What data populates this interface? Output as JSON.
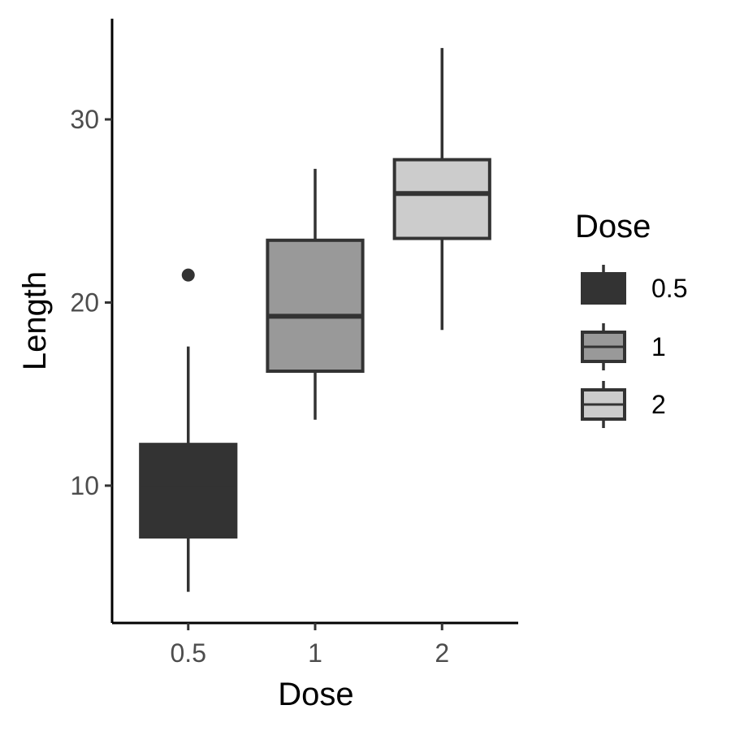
{
  "chart_data": {
    "type": "box",
    "xlabel": "Dose",
    "ylabel": "Length",
    "categories": [
      "0.5",
      "1",
      "2"
    ],
    "ylim": [
      2.5,
      35.5
    ],
    "yticks": [
      10,
      20,
      30
    ],
    "boxes": [
      {
        "category": "0.5",
        "min": 4.2,
        "q1": 7.2,
        "median": 9.85,
        "q3": 12.25,
        "max": 17.6,
        "outliers": [
          21.5
        ],
        "fill": "#333333"
      },
      {
        "category": "1",
        "min": 13.6,
        "q1": 16.25,
        "median": 19.25,
        "q3": 23.4,
        "max": 27.3,
        "outliers": [],
        "fill": "#999999"
      },
      {
        "category": "2",
        "min": 18.5,
        "q1": 23.5,
        "median": 25.95,
        "q3": 27.8,
        "max": 33.9,
        "outliers": [],
        "fill": "#cccccc"
      }
    ],
    "legend": {
      "title": "Dose",
      "position": "right",
      "entries": [
        {
          "label": "0.5",
          "fill": "#333333"
        },
        {
          "label": "1",
          "fill": "#999999"
        },
        {
          "label": "2",
          "fill": "#cccccc"
        }
      ]
    },
    "grid": false
  }
}
